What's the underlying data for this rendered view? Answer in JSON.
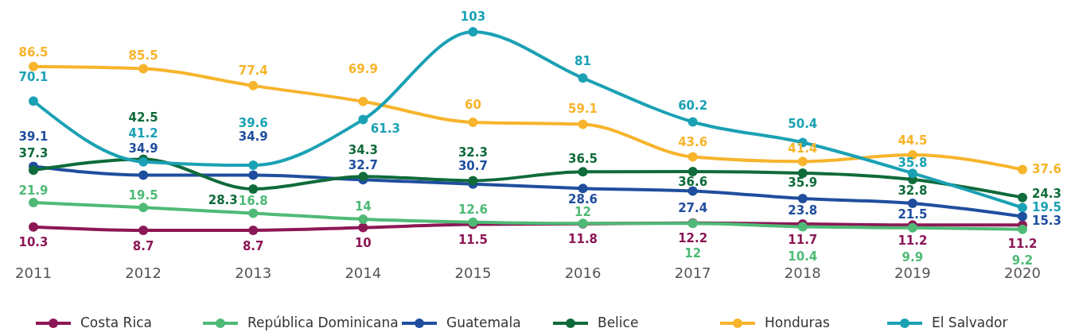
{
  "chart_data": {
    "type": "line",
    "categories": [
      "2011",
      "2012",
      "2013",
      "2014",
      "2015",
      "2016",
      "2017",
      "2018",
      "2019",
      "2020"
    ],
    "data_labels": true,
    "legend": "bottom",
    "marker": "circle",
    "series": [
      {
        "name": "Costa Rica",
        "color": "#8c1756",
        "values": [
          10.3,
          8.7,
          8.7,
          10,
          11.5,
          11.8,
          12.2,
          11.7,
          11.2,
          11.2
        ]
      },
      {
        "name": "República Dominicana",
        "color": "#4fba76",
        "values": [
          21.9,
          19.5,
          16.8,
          14,
          12.6,
          12,
          12,
          10.4,
          9.9,
          9.2
        ]
      },
      {
        "name": "Guatemala",
        "color": "#1f4e9e",
        "values": [
          39.1,
          34.9,
          34.9,
          32.7,
          30.7,
          28.6,
          27.4,
          23.8,
          21.5,
          15.3
        ]
      },
      {
        "name": "Belice",
        "color": "#0f6b3a",
        "values": [
          37.3,
          42.5,
          28.3,
          34.3,
          32.3,
          36.5,
          36.6,
          35.9,
          32.8,
          24.3
        ]
      },
      {
        "name": "Honduras",
        "color": "#f7b42c",
        "values": [
          86.5,
          85.5,
          77.4,
          69.9,
          60,
          59.1,
          43.6,
          41.4,
          44.5,
          37.6
        ]
      },
      {
        "name": "El Salvador",
        "color": "#1ba1b4",
        "values": [
          70.1,
          41.2,
          39.6,
          61.3,
          103,
          81,
          60.2,
          50.4,
          35.8,
          19.5
        ]
      }
    ]
  }
}
